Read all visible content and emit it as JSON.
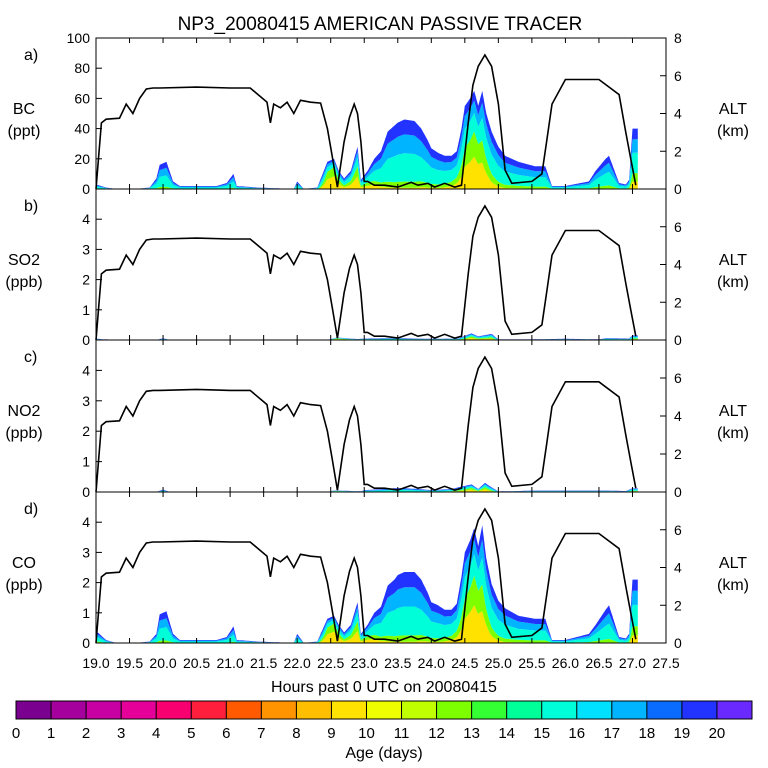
{
  "title": "NP3_20080415 AMERICAN PASSIVE TRACER",
  "xlabel": "Hours past 0 UTC on 20080415",
  "x_ticks": [
    "19.0",
    "19.5",
    "20.0",
    "20.5",
    "21.0",
    "21.5",
    "22.0",
    "22.5",
    "23.0",
    "23.5",
    "24.0",
    "24.5",
    "25.0",
    "25.5",
    "26.0",
    "26.5",
    "27.0",
    "27.5"
  ],
  "right_axis": {
    "label": "ALT",
    "unit": "(km)",
    "ticks": [
      "0",
      "2",
      "4",
      "6",
      "8"
    ],
    "range": [
      0,
      8
    ]
  },
  "colorbar": {
    "label": "Age (days)",
    "ticks": [
      "0",
      "1",
      "2",
      "3",
      "4",
      "5",
      "6",
      "7",
      "8",
      "9",
      "10",
      "11",
      "12",
      "13",
      "14",
      "15",
      "16",
      "17",
      "18",
      "19",
      "20"
    ],
    "colors": [
      "#7a0090",
      "#a5009d",
      "#c800a3",
      "#e5009a",
      "#f8006f",
      "#ff1e3c",
      "#ff5a00",
      "#ff9300",
      "#ffbe00",
      "#ffe200",
      "#eeff00",
      "#bfff00",
      "#7dff00",
      "#33ff33",
      "#00ff99",
      "#00ffd8",
      "#00e0ff",
      "#00b4ff",
      "#0a6cff",
      "#2233ff",
      "#6a2aff"
    ]
  },
  "panels": [
    {
      "letter": "a)",
      "species": "BC",
      "unit": "(ppt)",
      "ylim": [
        0,
        100
      ],
      "yticks": [
        "0",
        "20",
        "40",
        "60",
        "80",
        "100"
      ]
    },
    {
      "letter": "b)",
      "species": "SO2",
      "unit": "(ppb)",
      "ylim": [
        0,
        5
      ],
      "yticks": [
        "0",
        "1",
        "2",
        "3",
        "4"
      ]
    },
    {
      "letter": "c)",
      "species": "NO2",
      "unit": "(ppb)",
      "ylim": [
        0,
        5
      ],
      "yticks": [
        "0",
        "1",
        "2",
        "3",
        "4"
      ]
    },
    {
      "letter": "d)",
      "species": "CO",
      "unit": "(ppb)",
      "ylim": [
        0,
        5
      ],
      "yticks": [
        "0",
        "1",
        "2",
        "3",
        "4"
      ]
    }
  ],
  "chart_data": {
    "type": "area",
    "title": "NP3_20080415 AMERICAN PASSIVE TRACER",
    "xlabel": "Hours past 0 UTC on 20080415",
    "xlim": [
      19.0,
      27.5
    ],
    "altitude_km": {
      "x": [
        19.0,
        19.08,
        19.15,
        19.35,
        19.45,
        19.55,
        19.65,
        19.75,
        19.85,
        19.95,
        20.5,
        21.0,
        21.3,
        21.55,
        21.6,
        21.65,
        21.75,
        21.85,
        21.95,
        22.05,
        22.2,
        22.35,
        22.45,
        22.52,
        22.6,
        22.7,
        22.78,
        22.85,
        22.9,
        22.95,
        23.0,
        23.05,
        23.15,
        23.2,
        23.3,
        23.5,
        23.7,
        23.8,
        23.95,
        24.05,
        24.2,
        24.35,
        24.45,
        24.55,
        24.62,
        24.7,
        24.8,
        24.9,
        25.0,
        25.1,
        25.2,
        25.5,
        25.65,
        25.72,
        25.8,
        26.0,
        26.5,
        26.8,
        26.9,
        26.98,
        27.05
      ],
      "alt": [
        0.0,
        3.5,
        3.7,
        3.75,
        4.5,
        4.0,
        4.8,
        5.3,
        5.35,
        5.35,
        5.4,
        5.35,
        5.35,
        4.6,
        3.5,
        4.5,
        4.3,
        4.6,
        4.0,
        4.7,
        4.6,
        4.55,
        3.2,
        1.8,
        0.1,
        2.5,
        3.8,
        4.5,
        4.0,
        2.5,
        0.4,
        0.4,
        0.2,
        0.2,
        0.2,
        0.1,
        0.35,
        0.2,
        0.3,
        0.1,
        0.3,
        0.1,
        0.2,
        3.5,
        5.5,
        6.5,
        7.1,
        6.5,
        4.5,
        1.0,
        0.3,
        0.4,
        0.8,
        2.5,
        4.5,
        5.8,
        5.8,
        5.0,
        3.0,
        1.5,
        0.2
      ]
    },
    "age_stack_bins": [
      {
        "ages": [
          8,
          11
        ],
        "color": "#ffe200"
      },
      {
        "ages": [
          11,
          13
        ],
        "color": "#7dff00"
      },
      {
        "ages": [
          13,
          15
        ],
        "color": "#00ffd8"
      },
      {
        "ages": [
          15,
          17
        ],
        "color": "#00b4ff"
      },
      {
        "ages": [
          17,
          20
        ],
        "color": "#2233ff"
      }
    ],
    "series": [
      {
        "name": "BC",
        "unit": "ppt",
        "x": [
          19.0,
          19.15,
          19.3,
          19.6,
          19.8,
          19.9,
          19.95,
          20.05,
          20.15,
          20.25,
          20.8,
          20.95,
          21.05,
          21.1,
          21.4,
          21.95,
          22.0,
          22.1,
          22.3,
          22.45,
          22.55,
          22.62,
          22.7,
          22.8,
          22.9,
          22.95,
          23.05,
          23.15,
          23.25,
          23.35,
          23.45,
          23.5,
          23.6,
          23.75,
          23.85,
          23.95,
          24.0,
          24.1,
          24.2,
          24.3,
          24.38,
          24.45,
          24.5,
          24.58,
          24.64,
          24.7,
          24.76,
          24.82,
          24.9,
          25.0,
          25.1,
          25.3,
          25.55,
          25.7,
          25.8,
          26.0,
          26.35,
          26.45,
          26.6,
          26.65,
          26.8,
          26.9,
          26.95,
          27.0,
          27.05,
          27.08
        ],
        "total": [
          3,
          1,
          0,
          0,
          1,
          7,
          16,
          18,
          5,
          2,
          2,
          4,
          10,
          2,
          1,
          0,
          5,
          0,
          1,
          18,
          20,
          12,
          7,
          12,
          28,
          6,
          12,
          20,
          25,
          38,
          42,
          44,
          46,
          45,
          40,
          32,
          27,
          24,
          22,
          22,
          25,
          40,
          55,
          60,
          65,
          55,
          65,
          50,
          38,
          28,
          22,
          18,
          15,
          15,
          2,
          2,
          5,
          12,
          20,
          22,
          4,
          3,
          6,
          40,
          40,
          40
        ],
        "young_frac": [
          0.1,
          0,
          0,
          0,
          0,
          0,
          0,
          0,
          0,
          0,
          0,
          0,
          0,
          0,
          0,
          0,
          0,
          0,
          0,
          0.6,
          0.7,
          0.5,
          0.3,
          0.4,
          0.5,
          0.3,
          0.3,
          0.2,
          0.1,
          0.05,
          0.03,
          0.03,
          0.03,
          0.03,
          0.05,
          0.05,
          0.05,
          0.05,
          0.08,
          0.15,
          0.25,
          0.35,
          0.45,
          0.5,
          0.55,
          0.5,
          0.45,
          0.35,
          0.2,
          0.1,
          0.05,
          0.04,
          0.03,
          0.03,
          0.03,
          0.03,
          0.03,
          0.03,
          0.03,
          0.03,
          0.03,
          0.03,
          0.1,
          0.2,
          0.2,
          0.2
        ]
      },
      {
        "name": "SO2",
        "unit": "ppb",
        "x": [
          19.0,
          19.1,
          19.9,
          20.0,
          20.1,
          22.45,
          22.55,
          22.6,
          22.9,
          23.0,
          23.5,
          24.0,
          24.4,
          24.6,
          24.7,
          24.9,
          25.0,
          25.5,
          26.0,
          26.5,
          26.6,
          26.95,
          27.0,
          27.05,
          27.08
        ],
        "total": [
          0.05,
          0.02,
          0,
          0.06,
          0,
          0,
          0.06,
          0.08,
          0.03,
          0.05,
          0.06,
          0.04,
          0.05,
          0.22,
          0.12,
          0.2,
          0.02,
          0.02,
          0.04,
          0.02,
          0.06,
          0.05,
          0.15,
          0.15,
          0.15
        ],
        "young_frac": [
          0.1,
          0,
          0,
          0,
          0,
          0,
          0.6,
          0.6,
          0.3,
          0.2,
          0.1,
          0.1,
          0.2,
          0.5,
          0.4,
          0.4,
          0.1,
          0.1,
          0.1,
          0.1,
          0.1,
          0.1,
          0.3,
          0.3,
          0.3
        ]
      },
      {
        "name": "NO2",
        "unit": "ppb",
        "x": [
          19.0,
          19.9,
          20.0,
          20.1,
          22.45,
          22.55,
          22.6,
          22.95,
          23.0,
          23.3,
          23.5,
          23.8,
          24.0,
          24.3,
          24.5,
          24.6,
          24.7,
          24.8,
          24.9,
          25.0,
          25.3,
          25.5,
          25.6,
          26.6,
          26.9,
          27.0,
          27.08
        ],
        "total": [
          0,
          0,
          0.08,
          0,
          0,
          0.05,
          0.05,
          0.02,
          0.06,
          0.1,
          0.13,
          0.1,
          0.06,
          0.1,
          0.2,
          0.25,
          0.1,
          0.3,
          0.15,
          0.02,
          0.03,
          0.05,
          0.05,
          0.05,
          0.03,
          0.12,
          0.12
        ],
        "young_frac": [
          0,
          0,
          0,
          0,
          0,
          0.5,
          0.5,
          0.2,
          0.1,
          0.05,
          0.05,
          0.05,
          0.05,
          0.2,
          0.4,
          0.5,
          0.4,
          0.5,
          0.3,
          0.1,
          0.05,
          0.05,
          0.05,
          0.05,
          0.05,
          0.3,
          0.3
        ]
      },
      {
        "name": "CO",
        "unit": "ppb",
        "x": [
          19.0,
          19.15,
          19.3,
          19.6,
          19.8,
          19.9,
          19.95,
          20.05,
          20.15,
          20.25,
          20.8,
          20.95,
          21.05,
          21.1,
          21.4,
          21.95,
          22.0,
          22.1,
          22.3,
          22.45,
          22.55,
          22.62,
          22.7,
          22.8,
          22.9,
          22.95,
          23.05,
          23.15,
          23.25,
          23.35,
          23.45,
          23.5,
          23.6,
          23.75,
          23.85,
          23.95,
          24.0,
          24.1,
          24.2,
          24.3,
          24.38,
          24.45,
          24.5,
          24.58,
          24.64,
          24.7,
          24.76,
          24.82,
          24.9,
          25.0,
          25.1,
          25.3,
          25.55,
          25.7,
          25.8,
          26.0,
          26.35,
          26.45,
          26.6,
          26.65,
          26.8,
          26.9,
          26.95,
          27.0,
          27.05,
          27.08
        ],
        "total": [
          0.4,
          0.1,
          0,
          0,
          0.05,
          0.3,
          0.95,
          1.05,
          0.3,
          0.1,
          0.1,
          0.2,
          0.55,
          0.1,
          0.05,
          0,
          0.3,
          0,
          0.05,
          0.8,
          0.9,
          0.6,
          0.35,
          0.6,
          1.35,
          0.3,
          0.6,
          1.0,
          1.2,
          1.9,
          2.1,
          2.25,
          2.35,
          2.35,
          2.1,
          1.65,
          1.35,
          1.25,
          1.1,
          1.1,
          1.3,
          2.2,
          3.0,
          3.4,
          3.8,
          3.2,
          3.9,
          2.8,
          1.95,
          1.4,
          1.15,
          0.9,
          0.8,
          0.8,
          0.1,
          0.1,
          0.3,
          0.6,
          1.1,
          1.25,
          0.2,
          0.15,
          0.3,
          2.1,
          2.1,
          2.1
        ],
        "young_frac": [
          0.1,
          0,
          0,
          0,
          0,
          0,
          0,
          0,
          0,
          0,
          0,
          0,
          0,
          0,
          0,
          0,
          0,
          0,
          0,
          0.6,
          0.7,
          0.5,
          0.3,
          0.4,
          0.5,
          0.3,
          0.3,
          0.2,
          0.1,
          0.05,
          0.03,
          0.03,
          0.03,
          0.03,
          0.05,
          0.05,
          0.05,
          0.05,
          0.08,
          0.15,
          0.25,
          0.35,
          0.45,
          0.5,
          0.55,
          0.5,
          0.45,
          0.35,
          0.2,
          0.1,
          0.05,
          0.04,
          0.03,
          0.03,
          0.03,
          0.03,
          0.03,
          0.03,
          0.03,
          0.03,
          0.03,
          0.03,
          0.1,
          0.2,
          0.2,
          0.2
        ]
      }
    ]
  }
}
